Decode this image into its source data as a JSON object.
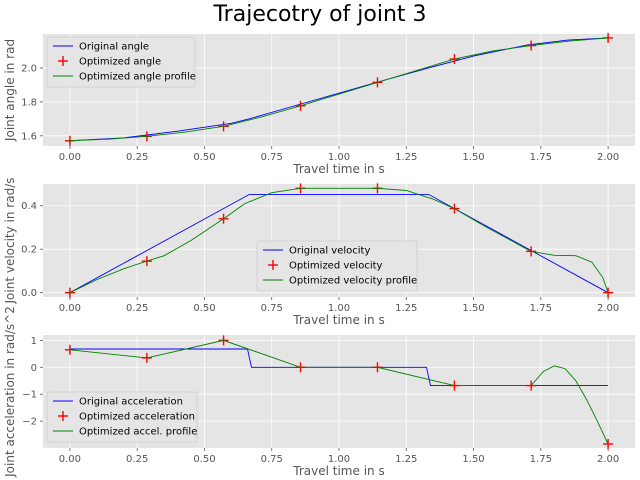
{
  "figure_title": "Trajecotry of joint 3",
  "colors": {
    "axes_bg": "#e5e5e5",
    "grid": "#ffffff",
    "original": "#0000ff",
    "optimized_points": "#ff0000",
    "optimized_profile": "#008000"
  },
  "chart_data": [
    {
      "type": "line",
      "xlabel": "Travel time in s",
      "ylabel": "Joint angle in rad",
      "xlim": [
        -0.1,
        2.1
      ],
      "ylim": [
        1.54,
        2.2
      ],
      "xticks": [
        0.0,
        0.25,
        0.5,
        0.75,
        1.0,
        1.25,
        1.5,
        1.75,
        2.0
      ],
      "xtick_labels": [
        "0.00",
        "0.25",
        "0.50",
        "0.75",
        "1.00",
        "1.25",
        "1.50",
        "1.75",
        "2.00"
      ],
      "yticks": [
        1.6,
        1.8,
        2.0
      ],
      "ytick_labels": [
        "1.6",
        "1.8",
        "2.0"
      ],
      "grid": true,
      "legend_position": "top-left",
      "series": [
        {
          "name": "Original angle",
          "style": "line",
          "x": [
            0.0,
            0.2,
            0.4,
            0.6,
            0.667,
            0.8,
            1.0,
            1.2,
            1.333,
            1.5,
            1.7,
            1.85,
            2.0
          ],
          "y": [
            1.571,
            1.588,
            1.627,
            1.674,
            1.7,
            1.761,
            1.851,
            1.942,
            2.0,
            2.07,
            2.136,
            2.164,
            2.177
          ]
        },
        {
          "name": "Optimized angle",
          "style": "markers",
          "x": [
            0.0,
            0.286,
            0.571,
            0.857,
            1.143,
            1.429,
            1.714,
            2.0
          ],
          "y": [
            1.571,
            1.597,
            1.656,
            1.777,
            1.915,
            2.052,
            2.132,
            2.177
          ]
        },
        {
          "name": "Optimized angle profile",
          "style": "line",
          "x": [
            0.0,
            0.143,
            0.286,
            0.429,
            0.571,
            0.714,
            0.857,
            1.0,
            1.143,
            1.286,
            1.429,
            1.571,
            1.714,
            1.857,
            2.0
          ],
          "y": [
            1.571,
            1.58,
            1.597,
            1.622,
            1.656,
            1.712,
            1.777,
            1.846,
            1.915,
            1.984,
            2.052,
            2.1,
            2.132,
            2.158,
            2.177
          ]
        }
      ]
    },
    {
      "type": "line",
      "xlabel": "Travel time in s",
      "ylabel": "Joint velocity in rad/s",
      "xlim": [
        -0.1,
        2.1
      ],
      "ylim": [
        -0.02,
        0.5
      ],
      "xticks": [
        0.0,
        0.25,
        0.5,
        0.75,
        1.0,
        1.25,
        1.5,
        1.75,
        2.0
      ],
      "xtick_labels": [
        "0.00",
        "0.25",
        "0.50",
        "0.75",
        "1.00",
        "1.25",
        "1.50",
        "1.75",
        "2.00"
      ],
      "yticks": [
        0.0,
        0.2,
        0.4
      ],
      "ytick_labels": [
        "0.0",
        "0.2",
        "0.4"
      ],
      "grid": true,
      "legend_position": "lower-center",
      "series": [
        {
          "name": "Original velocity",
          "style": "line",
          "x": [
            0.0,
            0.667,
            1.333,
            2.0
          ],
          "y": [
            0.0,
            0.452,
            0.452,
            0.0
          ]
        },
        {
          "name": "Optimized velocity",
          "style": "markers",
          "x": [
            0.0,
            0.286,
            0.571,
            0.857,
            1.143,
            1.429,
            1.714,
            2.0
          ],
          "y": [
            0.0,
            0.145,
            0.34,
            0.48,
            0.48,
            0.387,
            0.19,
            0.0
          ]
        },
        {
          "name": "Optimized velocity profile",
          "style": "line",
          "x": [
            0.0,
            0.1,
            0.2,
            0.286,
            0.35,
            0.45,
            0.571,
            0.65,
            0.75,
            0.857,
            1.0,
            1.143,
            1.25,
            1.35,
            1.429,
            1.55,
            1.714,
            1.8,
            1.88,
            1.94,
            1.98,
            2.0
          ],
          "y": [
            0.0,
            0.06,
            0.11,
            0.145,
            0.17,
            0.24,
            0.34,
            0.41,
            0.46,
            0.48,
            0.48,
            0.48,
            0.47,
            0.43,
            0.387,
            0.3,
            0.19,
            0.172,
            0.17,
            0.14,
            0.07,
            0.0
          ]
        }
      ]
    },
    {
      "type": "line",
      "xlabel": "Travel time in s",
      "ylabel": "Joint acceleration in rad/s^2",
      "xlim": [
        -0.1,
        2.1
      ],
      "ylim": [
        -3.0,
        1.2
      ],
      "xticks": [
        0.0,
        0.25,
        0.5,
        0.75,
        1.0,
        1.25,
        1.5,
        1.75,
        2.0
      ],
      "xtick_labels": [
        "0.00",
        "0.25",
        "0.50",
        "0.75",
        "1.00",
        "1.25",
        "1.50",
        "1.75",
        "2.00"
      ],
      "yticks": [
        -2,
        -1,
        0,
        1
      ],
      "ytick_labels": [
        "−2",
        "−1",
        "0",
        "1"
      ],
      "grid": true,
      "legend_position": "lower-left",
      "series": [
        {
          "name": "Original acceleration",
          "style": "line",
          "x": [
            0.0,
            0.66,
            0.675,
            1.325,
            1.34,
            2.0
          ],
          "y": [
            0.68,
            0.68,
            0.0,
            0.0,
            -0.68,
            -0.68
          ]
        },
        {
          "name": "Optimized acceleration",
          "style": "markers",
          "x": [
            0.0,
            0.286,
            0.571,
            0.857,
            1.143,
            1.429,
            1.714,
            2.0
          ],
          "y": [
            0.65,
            0.35,
            1.0,
            0.0,
            0.0,
            -0.68,
            -0.68,
            -2.85
          ]
        },
        {
          "name": "Optimized accel. profile",
          "style": "line",
          "x": [
            0.0,
            0.286,
            0.571,
            0.857,
            1.143,
            1.429,
            1.714,
            1.76,
            1.8,
            1.84,
            1.88,
            1.92,
            1.96,
            2.0
          ],
          "y": [
            0.65,
            0.35,
            1.0,
            0.0,
            0.0,
            -0.68,
            -0.68,
            -0.15,
            0.05,
            -0.05,
            -0.5,
            -1.2,
            -2.0,
            -2.85
          ]
        }
      ]
    }
  ]
}
